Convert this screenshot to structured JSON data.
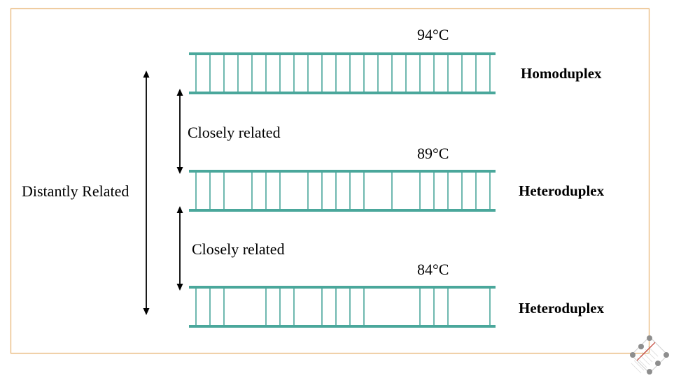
{
  "colors": {
    "frame": "#e8b87a",
    "duplex": "#4aa79b",
    "arrow": "#000000",
    "logo_gray": "#8e8e8e",
    "logo_red": "#c0392b"
  },
  "labels": {
    "distantly_related": "Distantly Related",
    "closely_related_1": "Closely related",
    "closely_related_2": "Closely related"
  },
  "duplexes": [
    {
      "temperature": "94°C",
      "type": "Homoduplex"
    },
    {
      "temperature": "89°C",
      "type": "Heteroduplex"
    },
    {
      "temperature": "84°C",
      "type": "Heteroduplex"
    }
  ],
  "logo": {
    "icon": "molecule-grid-logo-icon"
  }
}
